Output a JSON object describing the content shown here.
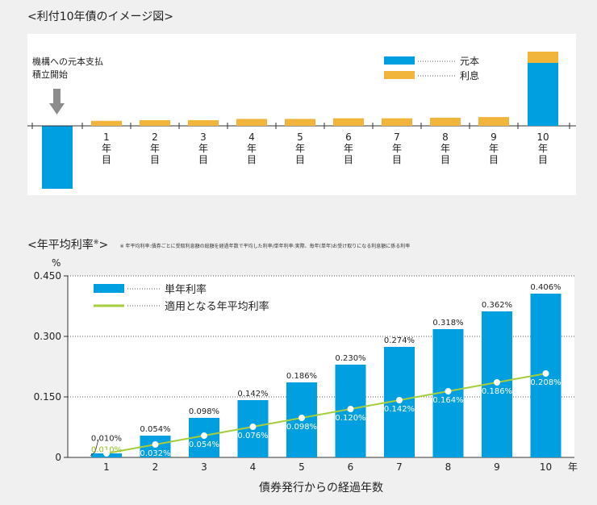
{
  "colors": {
    "principal": "#009fe0",
    "interest": "#f2b53c",
    "avg_line": "#a6cd3b",
    "panel_bg": "#ffffff",
    "page_bg": "#f0f0f0"
  },
  "section1": {
    "title": "<利付10年債のイメージ図>",
    "note_line1": "機構への元本支払",
    "note_line2": "積立開始",
    "legend": {
      "principal": "元本",
      "interest": "利息"
    }
  },
  "section2": {
    "title": "<年平均利率",
    "title_mark": "※",
    "title_close": ">",
    "footnote": "※ 年平均利率:債券ごとに受取利息額の総額を経過年数で平均した利率/単年利率:実際、毎年(単年)お受け取りになる利息額に係る利率"
  },
  "chart_data": [
    {
      "type": "bar",
      "title": "<利付10年債のイメージ図>",
      "categories": [
        "1\n年\n目",
        "2\n年\n目",
        "3\n年\n目",
        "4\n年\n目",
        "5\n年\n目",
        "6\n年\n目",
        "7\n年\n目",
        "8\n年\n目",
        "9\n年\n目",
        "10\n年\n目"
      ],
      "initial_payment": -100,
      "series": [
        {
          "name": "元本",
          "values": [
            0,
            0,
            0,
            0,
            0,
            0,
            0,
            0,
            0,
            100
          ]
        },
        {
          "name": "利息",
          "values": [
            8,
            9,
            9,
            11,
            11,
            12,
            12,
            13,
            14,
            18
          ]
        }
      ],
      "grid": false,
      "legend": "top-right"
    },
    {
      "type": "bar",
      "ylabel": "%",
      "xlabel": "債券発行からの経過年数",
      "x_unit": "年",
      "categories": [
        "1",
        "2",
        "3",
        "4",
        "5",
        "6",
        "7",
        "8",
        "9",
        "10"
      ],
      "ylim": [
        0,
        0.45
      ],
      "yticks": [
        "0",
        "0.150",
        "0.300",
        "0.450"
      ],
      "legend": "top-left",
      "series": [
        {
          "name": "単年利率",
          "type": "bar",
          "values": [
            0.01,
            0.054,
            0.098,
            0.142,
            0.186,
            0.23,
            0.274,
            0.318,
            0.362,
            0.406
          ],
          "labels": [
            "0.010%",
            "0.054%",
            "0.098%",
            "0.142%",
            "0.186%",
            "0.230%",
            "0.274%",
            "0.318%",
            "0.362%",
            "0.406%"
          ]
        },
        {
          "name": "適用となる年平均利率",
          "type": "line",
          "values": [
            0.01,
            0.032,
            0.054,
            0.076,
            0.098,
            0.12,
            0.142,
            0.164,
            0.186,
            0.208
          ],
          "labels": [
            "0.010%",
            "0.032%",
            "0.054%",
            "0.076%",
            "0.098%",
            "0.120%",
            "0.142%",
            "0.164%",
            "0.186%",
            "0.208%"
          ]
        }
      ]
    }
  ]
}
